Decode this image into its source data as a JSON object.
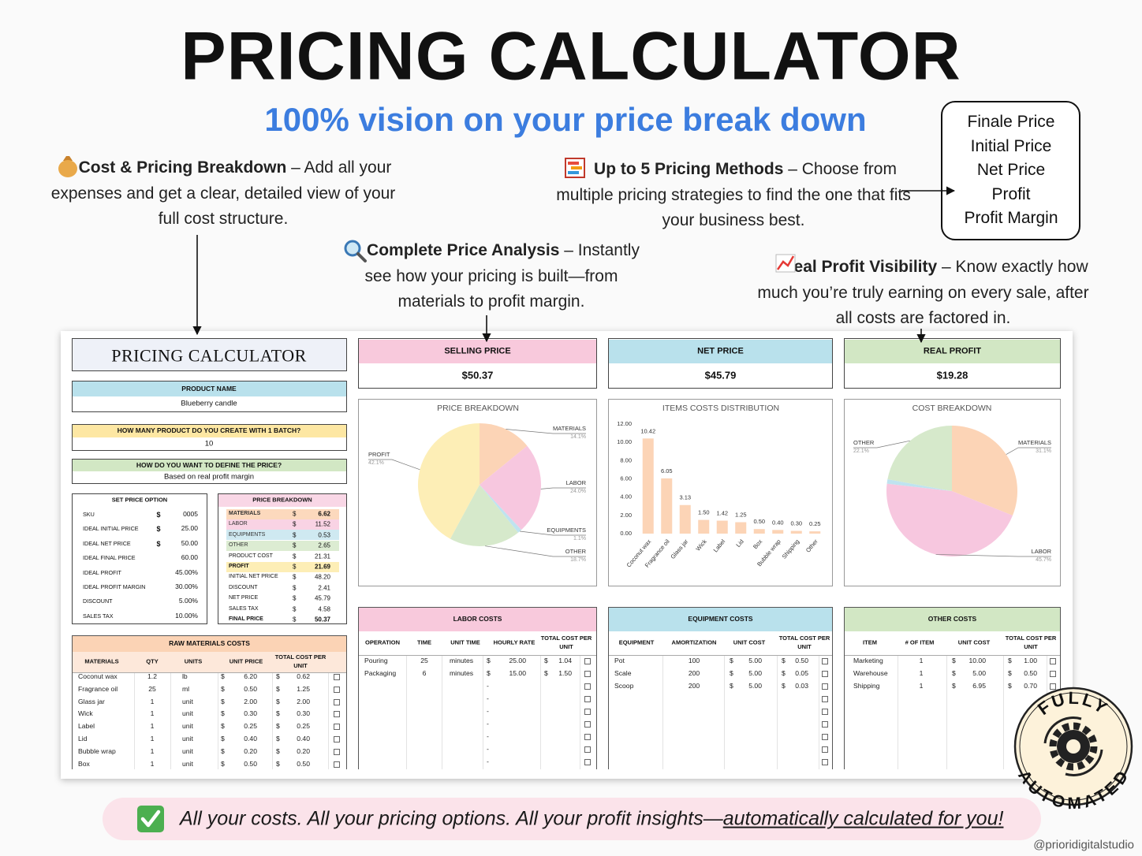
{
  "header": {
    "title": "PRICING CALCULATOR",
    "subtitle": "100% vision on your price break down"
  },
  "features": [
    {
      "title": "Cost & Pricing Breakdown",
      "text": "– Add all your expenses and get a clear, detailed view of your full cost structure."
    },
    {
      "title": "Up to 5 Pricing Methods",
      "text": "– Choose from multiple pricing strategies to find the one that fits your business best."
    },
    {
      "title": "Complete Price Analysis",
      "text": "– Instantly see how your pricing is built—from materials to profit margin."
    },
    {
      "title": "Real Profit Visibility",
      "text": "– Know exactly how much you’re truly earning on every sale, after all costs are factored in."
    }
  ],
  "outputs_box": [
    "Finale Price",
    "Initial Price",
    "Net Price",
    "Profit",
    "Profit Margin"
  ],
  "spreadsheet": {
    "title": "PRICING CALCULATOR",
    "product_name": {
      "label": "PRODUCT NAME",
      "value": "Blueberry candle"
    },
    "batch": {
      "label": "HOW MANY PRODUCT DO YOU CREATE WITH 1 BATCH?",
      "value": "10"
    },
    "method": {
      "label": "HOW DO YOU WANT TO DEFINE THE PRICE?",
      "value": "Based on real profit margin"
    },
    "set_price_option": {
      "title": "SET PRICE OPTION",
      "rows": [
        [
          "SKU",
          "$",
          "0005"
        ],
        [
          "IDEAL INITIAL PRICE",
          "$",
          "25.00"
        ],
        [
          "IDEAL NET PRICE",
          "$",
          "50.00"
        ],
        [
          "IDEAL FINAL PRICE",
          null,
          "60.00"
        ],
        [
          "IDEAL PROFIT",
          null,
          "45.00%"
        ],
        [
          "IDEAL PROFIT MARGIN",
          null,
          "30.00%"
        ],
        [
          "DISCOUNT",
          null,
          "5.00%"
        ],
        [
          "SALES TAX",
          null,
          "10.00%"
        ]
      ]
    },
    "price_breakdown": {
      "title": "PRICE BREAKDOWN",
      "rows": [
        [
          "MATERIALS",
          "$",
          "6.62"
        ],
        [
          "LABOR",
          "$",
          "11.52"
        ],
        [
          "EQUIPMENTS",
          "$",
          "0.53"
        ],
        [
          "OTHER",
          "$",
          "2.65"
        ],
        [
          "PRODUCT COST",
          "$",
          "21.31"
        ],
        [
          "PROFIT",
          "$",
          "21.69"
        ],
        [
          "INITIAL NET PRICE",
          "$",
          "48.20"
        ],
        [
          "DISCOUNT",
          "$",
          "2.41"
        ],
        [
          "NET PRICE",
          "$",
          "45.79"
        ],
        [
          "SALES TAX",
          "$",
          "4.58"
        ],
        [
          "FINAL PRICE",
          "$",
          "50.37"
        ]
      ]
    },
    "raw_materials": {
      "title": "RAW MATERIALS COSTS",
      "columns": [
        "MATERIALS",
        "QTY",
        "UNITS",
        "UNIT PRICE",
        "TOTAL COST PER UNIT"
      ],
      "rows": [
        [
          "Coconut wax",
          "1.2",
          "lb",
          "$",
          "6.20",
          "$",
          "0.62"
        ],
        [
          "Fragrance oil",
          "25",
          "ml",
          "$",
          "0.50",
          "$",
          "1.25"
        ],
        [
          "Glass jar",
          "1",
          "unit",
          "$",
          "2.00",
          "$",
          "2.00"
        ],
        [
          "Wick",
          "1",
          "unit",
          "$",
          "0.30",
          "$",
          "0.30"
        ],
        [
          "Label",
          "1",
          "unit",
          "$",
          "0.25",
          "$",
          "0.25"
        ],
        [
          "Lid",
          "1",
          "unit",
          "$",
          "0.40",
          "$",
          "0.40"
        ],
        [
          "Bubble wrap",
          "1",
          "unit",
          "$",
          "0.20",
          "$",
          "0.20"
        ],
        [
          "Box",
          "1",
          "unit",
          "$",
          "0.50",
          "$",
          "0.50"
        ]
      ]
    },
    "cards": [
      {
        "label": "SELLING PRICE",
        "value": "$50.37"
      },
      {
        "label": "NET PRICE",
        "value": "$45.79"
      },
      {
        "label": "REAL PROFIT",
        "value": "$19.28"
      }
    ],
    "labor": {
      "title": "LABOR COSTS",
      "columns": [
        "OPERATION",
        "TIME",
        "UNIT TIME",
        "HOURLY RATE",
        "TOTAL COST PER UNIT"
      ],
      "rows": [
        [
          "Pouring",
          "25",
          "minutes",
          "$",
          "25.00",
          "$",
          "1.04"
        ],
        [
          "Packaging",
          "6",
          "minutes",
          "$",
          "15.00",
          "$",
          "1.50"
        ],
        [
          null,
          null,
          null,
          "-"
        ],
        [
          null,
          null,
          null,
          "-"
        ],
        [
          null,
          null,
          null,
          "-"
        ],
        [
          null,
          null,
          null,
          "-"
        ],
        [
          null,
          null,
          null,
          "-"
        ],
        [
          null,
          null,
          null,
          "-"
        ],
        [
          null,
          null,
          null,
          "-"
        ]
      ]
    },
    "equipment": {
      "title": "EQUIPMENT COSTS",
      "columns": [
        "EQUIPMENT",
        "AMORTIZATION",
        "UNIT COST",
        "TOTAL COST PER UNIT"
      ],
      "rows": [
        [
          "Pot",
          "100",
          "$",
          "5.00",
          "$",
          "0.50"
        ],
        [
          "Scale",
          "200",
          "$",
          "5.00",
          "$",
          "0.05"
        ],
        [
          "Scoop",
          "200",
          "$",
          "5.00",
          "$",
          "0.03"
        ]
      ]
    },
    "other": {
      "title": "OTHER COSTS",
      "columns": [
        "ITEM",
        "# OF ITEM",
        "UNIT COST",
        "TOTAL COST PER UNIT"
      ],
      "rows": [
        [
          "Marketing",
          "1",
          "$",
          "10.00",
          "$",
          "1.00"
        ],
        [
          "Warehouse",
          "1",
          "$",
          "5.00",
          "$",
          "0.50"
        ],
        [
          "Shipping",
          "1",
          "$",
          "6.95",
          "$",
          "0.70"
        ]
      ]
    }
  },
  "badge": {
    "top": "FULLY",
    "bottom": "AUTOMATED"
  },
  "footer": {
    "text": "All your costs. All your pricing options. All your profit insights—",
    "emphasis": "automatically calculated for you!",
    "credit": "@prioridigitalstudio"
  },
  "chart_data": [
    {
      "type": "pie",
      "title": "PRICE BREAKDOWN",
      "categories": [
        "MATERIALS",
        "LABOR",
        "EQUIPMENTS",
        "OTHER",
        "PROFIT"
      ],
      "values": [
        14.1,
        24.0,
        1.1,
        18.7,
        42.1
      ],
      "value_labels": [
        "14.1%",
        "24.0%",
        "1.1%",
        "18.7%",
        "42.1%"
      ],
      "colors": [
        "#fcd4b6",
        "#f7c7df",
        "#bfe3ef",
        "#d6e9cb",
        "#fdeeb6"
      ]
    },
    {
      "type": "bar",
      "title": "ITEMS COSTS DISTRIBUTION",
      "categories": [
        "Coconut wax",
        "Fragrance oil",
        "Glass jar",
        "Wick",
        "Label",
        "Lid",
        "Box",
        "Bubble wrap",
        "Shipping",
        "Other"
      ],
      "values": [
        10.42,
        6.05,
        3.13,
        1.5,
        1.42,
        1.25,
        0.5,
        0.4,
        0.3,
        0.25
      ],
      "value_labels": [
        "10.42",
        "6.05",
        "3.13",
        "1.50",
        "1.42",
        "1.25",
        "0.50",
        "0.40",
        "0.30",
        "0.25"
      ],
      "color": "#fcd4b6",
      "ylim": [
        0,
        12
      ],
      "grid": false,
      "yticks": [
        {
          "value": 0,
          "label": "0.00"
        },
        {
          "value": 2,
          "label": "2.00"
        },
        {
          "value": 4,
          "label": "4.00"
        },
        {
          "value": 6,
          "label": "6.00"
        },
        {
          "value": 8,
          "label": "8.00"
        },
        {
          "value": 10,
          "label": "10.00"
        },
        {
          "value": 12,
          "label": "12.00"
        }
      ]
    },
    {
      "type": "pie",
      "title": "COST BREAKDOWN",
      "categories": [
        "MATERIALS",
        "LABOR",
        null,
        "OTHER"
      ],
      "values": [
        31.1,
        45.7,
        1.1,
        22.1
      ],
      "value_labels": [
        "31.1%",
        "45.7%",
        null,
        "22.1%"
      ],
      "colors": [
        "#fcd4b6",
        "#f7c7df",
        "#bfe3ef",
        "#d6e9cb"
      ]
    }
  ]
}
